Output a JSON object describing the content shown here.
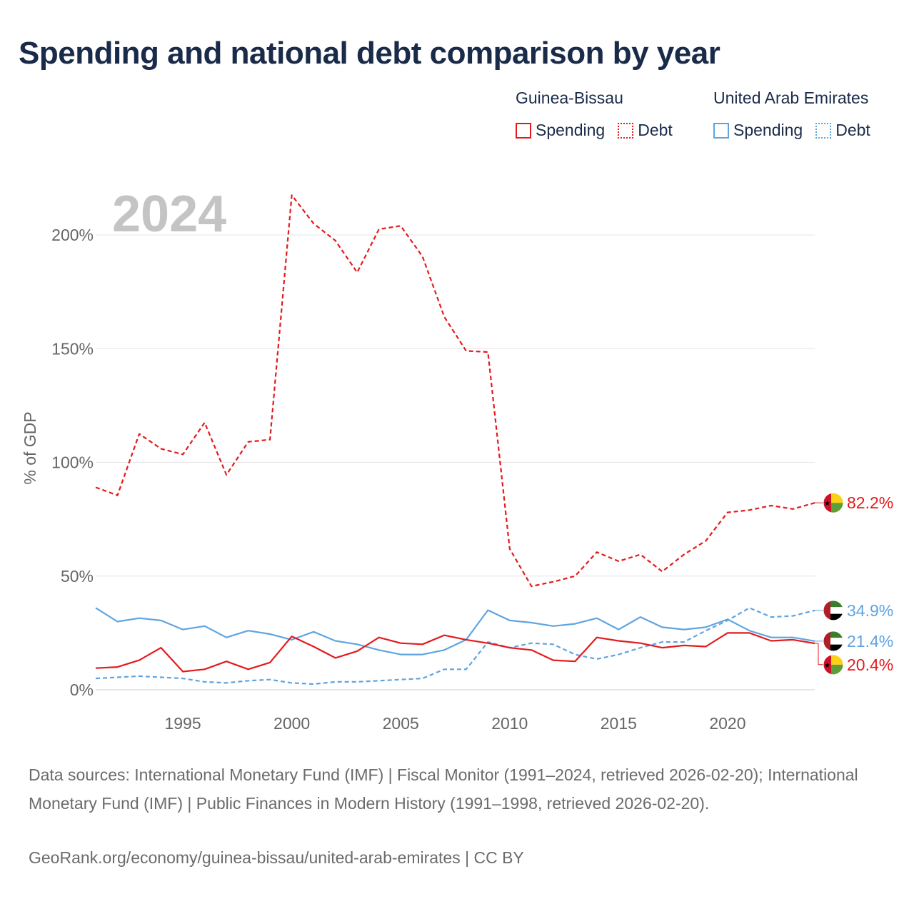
{
  "title": "Spending and national debt comparison by year",
  "legend": {
    "groups": [
      {
        "name": "Guinea-Bissau",
        "color": "#e41a1c",
        "items": [
          {
            "label": "Spending",
            "style": "solid"
          },
          {
            "label": "Debt",
            "style": "dotted"
          }
        ]
      },
      {
        "name": "United Arab Emirates",
        "color": "#5fa4e0",
        "items": [
          {
            "label": "Spending",
            "style": "solid"
          },
          {
            "label": "Debt",
            "style": "dotted"
          }
        ]
      }
    ]
  },
  "year_label": "2024",
  "footer": {
    "sources": "Data sources: International Monetary Fund (IMF) | Fiscal Monitor (1991–2024, retrieved 2026-02-20); International Monetary Fund (IMF) | Public Finances in Modern History (1991–1998, retrieved 2026-02-20).",
    "credit": "GeoRank.org/economy/guinea-bissau/united-arab-emirates | CC BY"
  },
  "chart_data": {
    "type": "line",
    "title": "Spending and national debt comparison by year",
    "xlabel": "",
    "ylabel": "% of GDP",
    "xlim": [
      1991,
      2024
    ],
    "ylim": [
      0,
      225
    ],
    "x_ticks": [
      1995,
      2000,
      2005,
      2010,
      2015,
      2020
    ],
    "y_ticks": [
      0,
      50,
      100,
      150,
      200
    ],
    "y_tick_labels": [
      "0%",
      "50%",
      "100%",
      "150%",
      "200%"
    ],
    "grid": true,
    "x": [
      1991,
      1992,
      1993,
      1994,
      1995,
      1996,
      1997,
      1998,
      1999,
      2000,
      2001,
      2002,
      2003,
      2004,
      2005,
      2006,
      2007,
      2008,
      2009,
      2010,
      2011,
      2012,
      2013,
      2014,
      2015,
      2016,
      2017,
      2018,
      2019,
      2020,
      2021,
      2022,
      2023,
      2024
    ],
    "series": [
      {
        "name": "Guinea-Bissau Debt",
        "country": "Guinea-Bissau",
        "metric": "Debt",
        "color": "#e41a1c",
        "dash": "6,4",
        "values": [
          89,
          85.5,
          112.5,
          106,
          103.5,
          117.5,
          94.5,
          109,
          110,
          217.5,
          205,
          197.5,
          183.5,
          202.5,
          204,
          190.5,
          164,
          149,
          148.5,
          62,
          45.5,
          47.5,
          50,
          60.5,
          56.5,
          59.5,
          52,
          59.5,
          65.5,
          78,
          79,
          81,
          79.5,
          82.2
        ],
        "end_label": "82.2%"
      },
      {
        "name": "United Arab Emirates Debt",
        "country": "United Arab Emirates",
        "metric": "Debt",
        "color": "#5fa4e0",
        "dash": "6,4",
        "values": [
          5,
          5.5,
          6,
          5.5,
          5,
          3.5,
          3,
          4,
          4.5,
          3,
          2.5,
          3.5,
          3.5,
          4,
          4.5,
          5,
          9,
          9,
          21,
          18.5,
          20.5,
          20,
          15.5,
          13.5,
          15.5,
          18.5,
          21,
          21,
          26,
          30.5,
          36,
          32,
          32.5,
          34.9
        ],
        "end_label": "34.9%"
      },
      {
        "name": "United Arab Emirates Spending",
        "country": "United Arab Emirates",
        "metric": "Spending",
        "color": "#5fa4e0",
        "dash": "",
        "values": [
          36,
          30,
          31.5,
          30.5,
          26.5,
          28,
          23,
          26,
          24.5,
          22,
          25.5,
          21.5,
          20,
          17.5,
          15.5,
          15.5,
          17.5,
          22,
          35,
          30.5,
          29.5,
          28,
          29,
          31.5,
          26.5,
          32,
          27.5,
          26.5,
          27.5,
          31,
          26,
          23,
          23,
          21.4
        ],
        "end_label": "21.4%"
      },
      {
        "name": "Guinea-Bissau Spending",
        "country": "Guinea-Bissau",
        "metric": "Spending",
        "color": "#e41a1c",
        "dash": "",
        "values": [
          9.5,
          10,
          13,
          18.5,
          8,
          9,
          12.5,
          9,
          12,
          23.5,
          19,
          14,
          17,
          23,
          20.5,
          20,
          24,
          22,
          20.5,
          18.5,
          17.5,
          13,
          12.5,
          23,
          21.5,
          20.5,
          18.5,
          19.5,
          19,
          25,
          25,
          21.5,
          22,
          20.4
        ],
        "end_label": "20.4%"
      }
    ]
  }
}
